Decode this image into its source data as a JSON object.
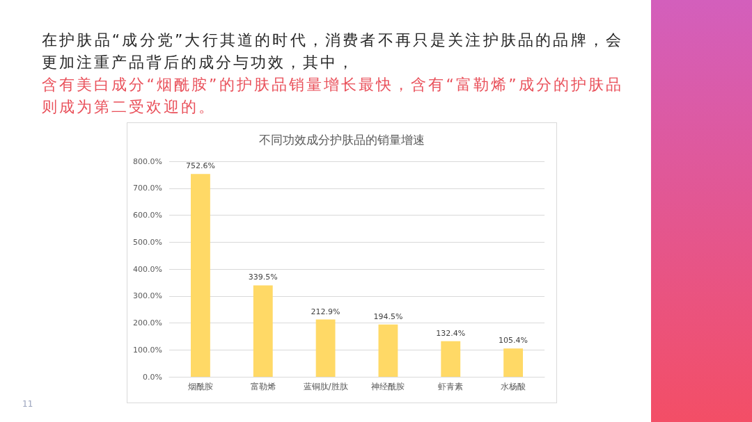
{
  "chart_data": {
    "type": "bar",
    "title": "不同功效成分护肤品的销量增速",
    "categories": [
      "烟酰胺",
      "富勒烯",
      "蓝铜肽/胜肽",
      "神经酰胺",
      "虾青素",
      "水杨酸"
    ],
    "values": [
      752.6,
      339.5,
      212.9,
      194.5,
      132.4,
      105.4
    ],
    "color": "#ffd966",
    "value_labels": [
      "752.6%",
      "339.5%",
      "212.9%",
      "194.5%",
      "132.4%",
      "105.4%"
    ],
    "ylim": [
      0,
      800
    ],
    "yticks": [
      {
        "value": 0,
        "label": "0.0%"
      },
      {
        "value": 100,
        "label": "100.0%"
      },
      {
        "value": 200,
        "label": "200.0%"
      },
      {
        "value": 300,
        "label": "300.0%"
      },
      {
        "value": 400,
        "label": "400.0%"
      },
      {
        "value": 500,
        "label": "500.0%"
      },
      {
        "value": 600,
        "label": "600.0%"
      },
      {
        "value": 700,
        "label": "700.0%"
      },
      {
        "value": 800,
        "label": "800.0%"
      }
    ],
    "grid": "y",
    "annotations": [
      "在护肤品“成分党”大行其道的时代，消费者不再只是关注护肤品的品牌，会更加注重产品背后的成分与功效，其中，",
      "含有美白成分“烟酰胺”的护肤品销量增长最快，含有“富勒烯”成分的护肤品则成为第二受欢迎的。",
      "11"
    ]
  }
}
